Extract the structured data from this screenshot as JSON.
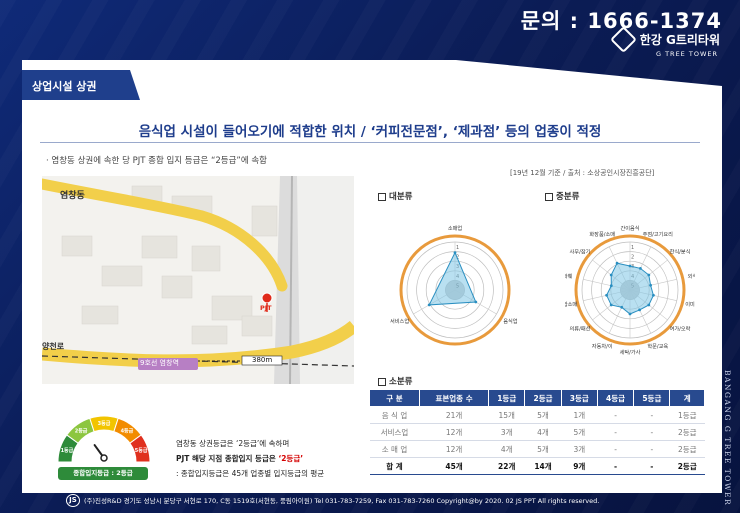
{
  "header": {
    "phone": "문의 : 1666-1374",
    "logo_name": "한강 G트리타워",
    "logo_sub": "G TREE TOWER"
  },
  "tag": "상업시설 상권",
  "title": "음식업 시설이 들어오기에 적합한 위치 / ‘커피전문점’, ‘제과점’ 등의 업종이 적정",
  "subtitle": "· 염창동 상권에 속한 당 PJT 종합 입지 등급은 “2등급”에 속함",
  "source": "[19년 12월 기준 / 출처 : 소상공인시장진흥공단]",
  "map": {
    "place_top": "염창동",
    "place_left": "양천로",
    "station": "9호선 염창역",
    "distance": "380m",
    "pin_label": "PJT"
  },
  "radar_large": {
    "header": "대분류",
    "axes": [
      "소매업",
      "음식업",
      "서비스업"
    ],
    "ticks": [
      "1",
      "2",
      "3",
      "4",
      "5"
    ],
    "values": [
      1.6,
      3.0,
      2.4
    ]
  },
  "radar_medium": {
    "header": "중분류",
    "axes": [
      "간이음식",
      "주점/고기요리",
      "한식/분식",
      "외식",
      "이미용",
      "여가/오락",
      "학문/교육",
      "세탁/가사",
      "자동차/이",
      "의류/패션",
      "종합소매",
      "화훼",
      "사무/잡기",
      "화장품/소매"
    ],
    "ticks": [
      "1",
      "2",
      "3",
      "4",
      "5"
    ],
    "values": [
      3,
      3,
      3,
      3.3,
      3,
      3,
      3.2,
      3,
      3.5,
      3,
      3,
      3.5,
      3,
      2.4
    ]
  },
  "table": {
    "header": "소분류",
    "columns": [
      "구 분",
      "표본업종 수",
      "1등급",
      "2등급",
      "3등급",
      "4등급",
      "5등급",
      "계"
    ],
    "rows": [
      [
        "음 식 업",
        "21개",
        "15개",
        "5개",
        "1개",
        "-",
        "-",
        "1등급"
      ],
      [
        "서비스업",
        "12개",
        "3개",
        "4개",
        "5개",
        "-",
        "-",
        "2등급"
      ],
      [
        "소 매 업",
        "12개",
        "4개",
        "5개",
        "3개",
        "-",
        "-",
        "2등급"
      ]
    ],
    "total": [
      "합 계",
      "45개",
      "22개",
      "14개",
      "9개",
      "-",
      "-",
      "2등급"
    ]
  },
  "gauge": {
    "segments": [
      "1등급",
      "2등급",
      "3등급",
      "4등급",
      "5등급"
    ],
    "colors": [
      "#2e8b3a",
      "#8cc63f",
      "#f2c400",
      "#f28c00",
      "#e0301e"
    ],
    "badge": "종합입지등급 : 2등급",
    "grade": 2
  },
  "notes": {
    "line1": "염창동 상권등급은 ‘2등급’에 속하며",
    "line2a": "PJT 해당 지점 종합입지 등급은 ",
    "line2b": "‘2등급’",
    "line3": ": 종합입지등급은 45개 업종별 입지등급의 평균"
  },
  "side_text": "BANGANG G TREE TOWER",
  "footer": "(주)진성R&D 경기도 성남시 분당구 서현로 170, C동 1519호(서현동, 풍림아이원) Tel 031-783-7259, Fax 031-783-7260 Copyright@by 2020. 02 JS PPT All rights reserved."
}
